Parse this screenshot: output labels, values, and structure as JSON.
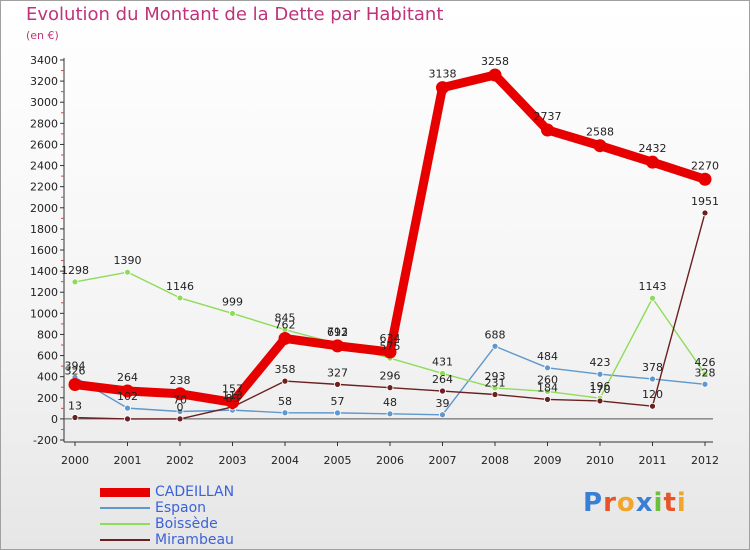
{
  "title": "Evolution du Montant de la Dette par Habitant",
  "subtitle": "(en €)",
  "logo": {
    "letters": [
      "P",
      "r",
      "o",
      "x",
      "i",
      "t",
      "i"
    ],
    "colors": [
      "#3a7fd6",
      "#e8542a",
      "#f2a52b",
      "#3a7fd6",
      "#6bbf3a",
      "#e8542a",
      "#f2a52b"
    ]
  },
  "chart_data": {
    "type": "line",
    "title": "Evolution du Montant de la Dette par Habitant",
    "ylabel": "(en €)",
    "xlabel": "",
    "categories": [
      "2000",
      "2001",
      "2002",
      "2003",
      "2004",
      "2005",
      "2006",
      "2007",
      "2008",
      "2009",
      "2010",
      "2011",
      "2012"
    ],
    "yticks": [
      "-200",
      "0",
      "200",
      "400",
      "600",
      "800",
      "1000",
      "1200",
      "1400",
      "1600",
      "1800",
      "2000",
      "2200",
      "2400",
      "2600",
      "2800",
      "3000",
      "3200",
      "3400"
    ],
    "ylim": [
      -200,
      3400
    ],
    "grid": false,
    "legend": "bottom-left",
    "series": [
      {
        "name": "CADEILLAN",
        "color": "#e60000",
        "values": [
          326,
          264,
          238,
          157,
          762,
          692,
          634,
          3138,
          3258,
          2737,
          2588,
          2432,
          2270
        ]
      },
      {
        "name": "Espaon",
        "color": "#5f98cc",
        "values": [
          394,
          102,
          70,
          83,
          58,
          57,
          48,
          39,
          688,
          484,
          423,
          378,
          328
        ]
      },
      {
        "name": "Boissède",
        "color": "#8fdc5a",
        "values": [
          1298,
          1390,
          1146,
          999,
          845,
          713,
          575,
          431,
          293,
          260,
          196,
          1143,
          426
        ]
      },
      {
        "name": "Mirambeau",
        "color": "#6b1f1f",
        "values": [
          13,
          0,
          0,
          113,
          358,
          327,
          296,
          264,
          231,
          184,
          170,
          120,
          1951
        ]
      }
    ],
    "data_labels": [
      [
        "326",
        "264",
        "238",
        "157",
        "762",
        "692",
        "634",
        "3138",
        "3258",
        "2737",
        "2588",
        "2432",
        "2270"
      ],
      [
        "394",
        "102",
        "70",
        "83",
        "58",
        "57",
        "48",
        "39",
        "688",
        "484",
        "423",
        "378",
        "328"
      ],
      [
        "1298",
        "1390",
        "1146",
        "999",
        "845",
        "713",
        "575",
        "431",
        "293",
        "260",
        "196",
        "1143",
        "426"
      ],
      [
        "13",
        "",
        "0",
        "113",
        "358",
        "327",
        "296",
        "264",
        "231",
        "184",
        "170",
        "120",
        "1951"
      ]
    ]
  }
}
